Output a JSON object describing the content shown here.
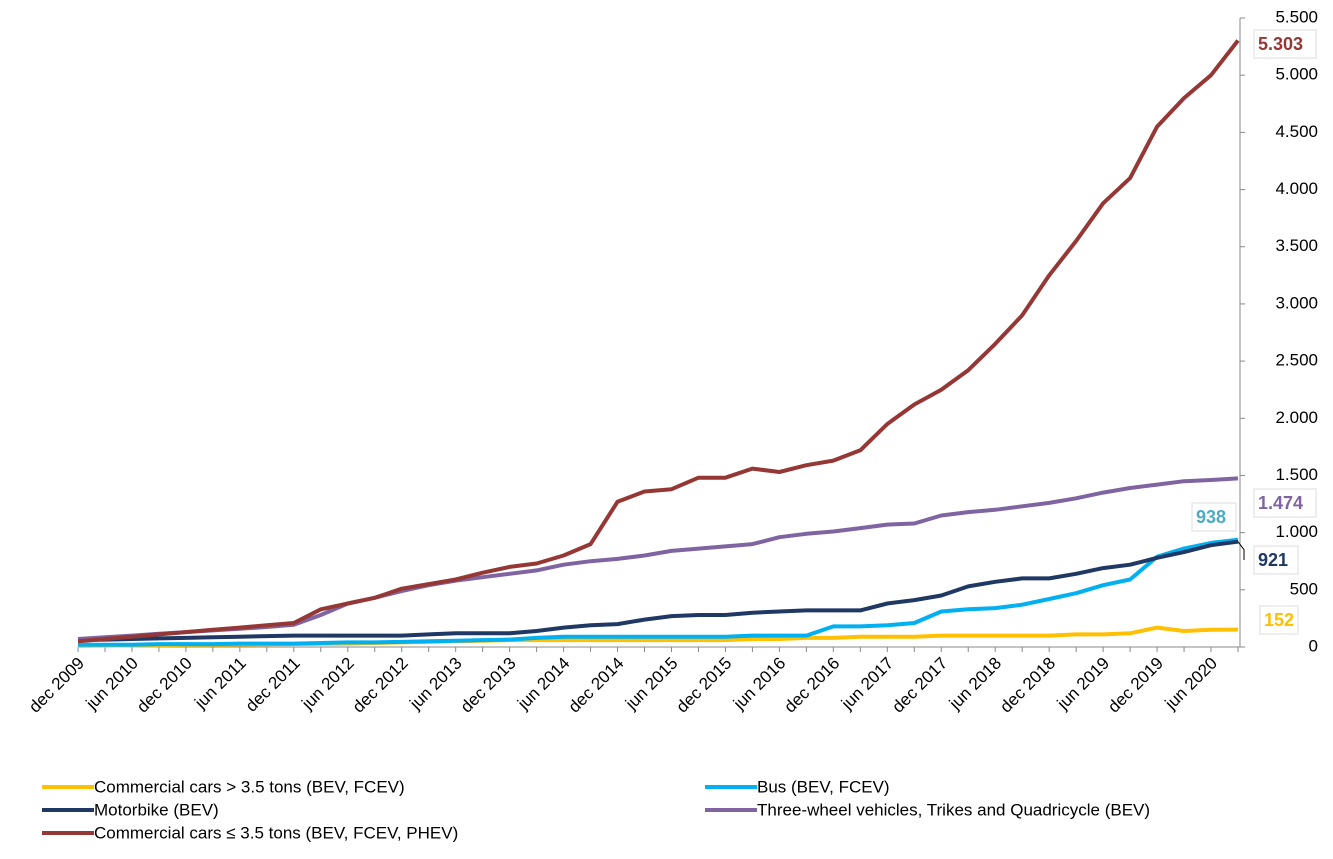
{
  "chart_data": {
    "type": "line",
    "categories": [
      "dec 2009",
      null,
      "jun 2010",
      null,
      "dec 2010",
      null,
      "jun 2011",
      null,
      "dec 2011",
      null,
      "jun 2012",
      null,
      "dec 2012",
      null,
      "jun 2013",
      null,
      "dec 2013",
      null,
      "jun 2014",
      null,
      "dec 2014",
      null,
      "jun 2015",
      null,
      "dec 2015",
      null,
      "jun 2016",
      null,
      "dec 2016",
      null,
      "jun 2017",
      null,
      "dec 2017",
      null,
      "jun 2018",
      null,
      "dec 2018",
      null,
      "jun 2019",
      null,
      "dec 2019",
      null,
      "jun 2020",
      null
    ],
    "series": [
      {
        "name": "Commercial cars > 3.5 tons (BEV, FCEV)",
        "color": "#ffc000",
        "values": [
          10,
          12,
          14,
          16,
          18,
          20,
          22,
          24,
          26,
          28,
          30,
          35,
          40,
          45,
          50,
          55,
          60,
          60,
          60,
          60,
          60,
          60,
          60,
          60,
          60,
          70,
          70,
          80,
          80,
          90,
          90,
          90,
          100,
          100,
          100,
          100,
          100,
          110,
          110,
          120,
          170,
          140,
          150,
          152
        ]
      },
      {
        "name": "Bus (BEV, FCEV)",
        "color": "#00b0f0",
        "values": [
          20,
          20,
          20,
          25,
          25,
          25,
          30,
          30,
          30,
          35,
          40,
          40,
          45,
          50,
          55,
          60,
          65,
          80,
          90,
          90,
          90,
          90,
          90,
          90,
          90,
          100,
          100,
          100,
          180,
          180,
          190,
          210,
          310,
          330,
          340,
          370,
          420,
          470,
          540,
          590,
          790,
          860,
          910,
          938
        ]
      },
      {
        "name": "Motorbike (BEV)",
        "color": "#1f3864",
        "values": [
          60,
          65,
          70,
          75,
          80,
          85,
          90,
          95,
          100,
          100,
          100,
          100,
          100,
          110,
          120,
          120,
          120,
          140,
          170,
          190,
          200,
          240,
          270,
          280,
          280,
          300,
          310,
          320,
          320,
          320,
          380,
          410,
          450,
          530,
          570,
          600,
          600,
          640,
          690,
          720,
          780,
          830,
          890,
          921
        ]
      },
      {
        "name": "Three-wheel vehicles, Trikes and Quadricycle (BEV)",
        "color": "#8064a2",
        "values": [
          70,
          85,
          100,
          115,
          130,
          145,
          160,
          175,
          195,
          280,
          380,
          430,
          490,
          540,
          580,
          610,
          640,
          670,
          720,
          750,
          770,
          800,
          840,
          860,
          880,
          900,
          960,
          990,
          1010,
          1040,
          1070,
          1080,
          1150,
          1180,
          1200,
          1230,
          1260,
          1300,
          1350,
          1390,
          1420,
          1450,
          1460,
          1474
        ],
        "value_labels": [
          null,
          null,
          null,
          null,
          null,
          null,
          null,
          null,
          null,
          null,
          null,
          null,
          null,
          null,
          null,
          null,
          null,
          null,
          null,
          null,
          null,
          null,
          null,
          null,
          null,
          null,
          null,
          null,
          null,
          null,
          null,
          null,
          null,
          null,
          null,
          null,
          null,
          null,
          null,
          null,
          null,
          null,
          null,
          "1.474"
        ]
      },
      {
        "name": "Commercial cars ≤ 3.5 tons (BEV, FCEV, PHEV)",
        "color": "#953735",
        "values": [
          50,
          70,
          90,
          110,
          130,
          150,
          170,
          190,
          210,
          330,
          380,
          430,
          510,
          550,
          590,
          650,
          700,
          730,
          800,
          900,
          1270,
          1360,
          1380,
          1480,
          1480,
          1560,
          1530,
          1590,
          1630,
          1720,
          1950,
          2120,
          2250,
          2420,
          2650,
          2900,
          3250,
          3550,
          3880,
          4100,
          4550,
          4800,
          5000,
          5303
        ],
        "value_labels": [
          null,
          null,
          null,
          null,
          null,
          null,
          null,
          null,
          null,
          null,
          null,
          null,
          null,
          null,
          null,
          null,
          null,
          null,
          null,
          null,
          null,
          null,
          null,
          null,
          null,
          null,
          null,
          null,
          null,
          null,
          null,
          null,
          null,
          null,
          null,
          null,
          null,
          null,
          null,
          null,
          null,
          null,
          null,
          "5.303"
        ]
      }
    ],
    "ylim": [
      0,
      5500
    ],
    "yticks": [
      0,
      {
        "value": 500,
        "label": "500"
      },
      {
        "value": 1000,
        "label": "1.000"
      },
      {
        "value": 1500,
        "label": "1.500"
      },
      {
        "value": 2000,
        "label": "2.000"
      },
      {
        "value": 2500,
        "label": "2.500"
      },
      {
        "value": 3000,
        "label": "3.000"
      },
      {
        "value": 3500,
        "label": "3.500"
      },
      {
        "value": 4000,
        "label": "4.000"
      },
      {
        "value": 4500,
        "label": "4.500"
      },
      {
        "value": 5000,
        "label": "5.000"
      },
      {
        "value": 5500,
        "label": "5.500"
      }
    ],
    "grid": false,
    "legend": "bottom"
  }
}
